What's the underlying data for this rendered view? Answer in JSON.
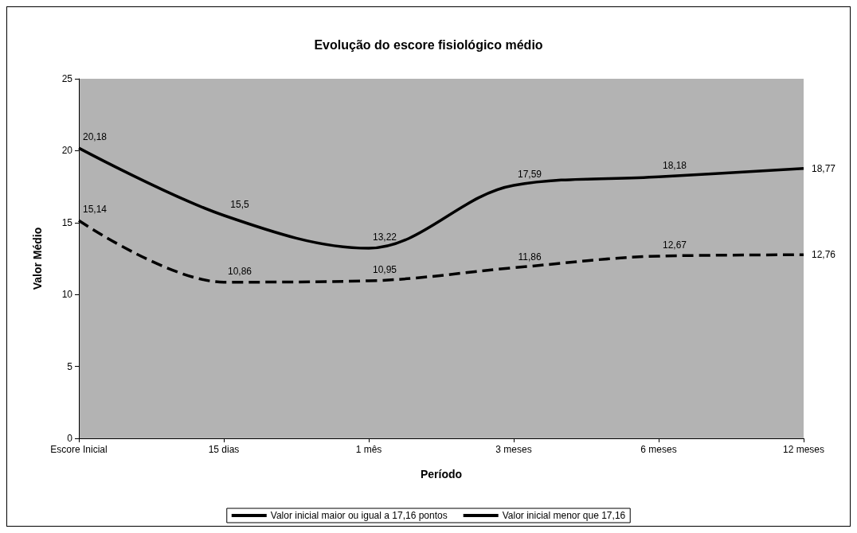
{
  "chart_data": {
    "type": "line",
    "title": "Evolução do escore fisiológico médio",
    "xlabel": "Período",
    "ylabel": "Valor Médio",
    "categories": [
      "Escore Inicial",
      "15 dias",
      "1 mês",
      "3 meses",
      "6 meses",
      "12 meses"
    ],
    "series": [
      {
        "name": "Valor inicial maior ou igual a 17,16 pontos",
        "color": "#000000",
        "line_style": "solid",
        "values": [
          20.18,
          15.5,
          13.22,
          17.59,
          18.18,
          18.77
        ],
        "value_labels": [
          "20,18",
          "15,5",
          "13,22",
          "17,59",
          "18,18",
          "18,77"
        ]
      },
      {
        "name": "Valor inicial menor que 17,16",
        "color": "#000000",
        "line_style": "dashed",
        "values": [
          15.14,
          10.86,
          10.95,
          11.86,
          12.67,
          12.76
        ],
        "value_labels": [
          "15,14",
          "10,86",
          "10,95",
          "11,86",
          "12,67",
          "12,76"
        ]
      }
    ],
    "ylim": [
      0,
      25
    ],
    "yticks": [
      0,
      5,
      10,
      15,
      20,
      25
    ],
    "grid": false,
    "legend": "bottom",
    "marker": "none"
  }
}
